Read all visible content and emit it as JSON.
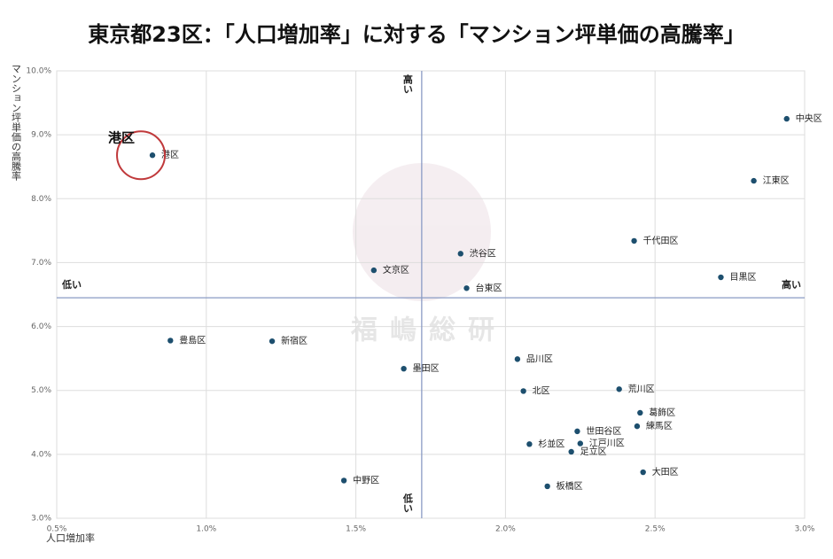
{
  "chart_data": {
    "type": "scatter",
    "title": "東京都23区：「人口増加率」に対する「マンション坪単価の高騰率」",
    "x_label": "人口増加率",
    "y_label": "マンション坪単価の高騰率",
    "labels": [
      "中央区",
      "江東区",
      "千代田区",
      "目黒区",
      "港区",
      "渋谷区",
      "文京区",
      "台東区",
      "豊島区",
      "新宿区",
      "墨田区",
      "品川区",
      "北区",
      "荒川区",
      "葛飾区",
      "練馬区",
      "世田谷区",
      "杉並区",
      "江戸川区",
      "足立区",
      "大田区",
      "中野区",
      "板橋区"
    ],
    "x": [
      2.94,
      2.83,
      2.43,
      2.72,
      0.82,
      1.85,
      1.56,
      1.87,
      0.88,
      1.22,
      1.66,
      2.04,
      2.06,
      2.38,
      2.45,
      2.44,
      2.24,
      2.08,
      2.25,
      2.22,
      2.46,
      1.46,
      2.14
    ],
    "values": [
      9.25,
      8.28,
      7.34,
      6.77,
      8.68,
      7.14,
      6.88,
      6.6,
      5.78,
      5.77,
      5.34,
      5.49,
      4.99,
      5.02,
      4.65,
      4.44,
      4.36,
      4.16,
      4.17,
      4.04,
      3.72,
      3.59,
      3.5
    ],
    "color": "#1d4f6e",
    "xlim": [
      0.5,
      3.0
    ],
    "xticks": [
      {
        "value": 0.5,
        "label": "0.5%"
      },
      {
        "value": 1.0,
        "label": "1.0%"
      },
      {
        "value": 1.5,
        "label": "1.5%"
      },
      {
        "value": 2.0,
        "label": "2.0%"
      },
      {
        "value": 2.5,
        "label": "2.5%"
      },
      {
        "value": 3.0,
        "label": "3.0%"
      }
    ],
    "ylim": [
      3.0,
      10.0
    ],
    "yticks": [
      {
        "value": 3,
        "label": "3.0%"
      },
      {
        "value": 4,
        "label": "4.0%"
      },
      {
        "value": 5,
        "label": "5.0%"
      },
      {
        "value": 6,
        "label": "6.0%"
      },
      {
        "value": 7,
        "label": "7.0%"
      },
      {
        "value": 8,
        "label": "8.0%"
      },
      {
        "value": 9,
        "label": "9.0%"
      },
      {
        "value": 10,
        "label": "10.0%"
      }
    ],
    "grid": true,
    "quadrant_lines": {
      "x": 1.72,
      "y": 6.45
    },
    "quadrant_labels": {
      "top": "高い",
      "bottom": "低い",
      "left": "低い",
      "right": "高い"
    },
    "annotation": "港区",
    "watermark": "福嶋総研"
  }
}
